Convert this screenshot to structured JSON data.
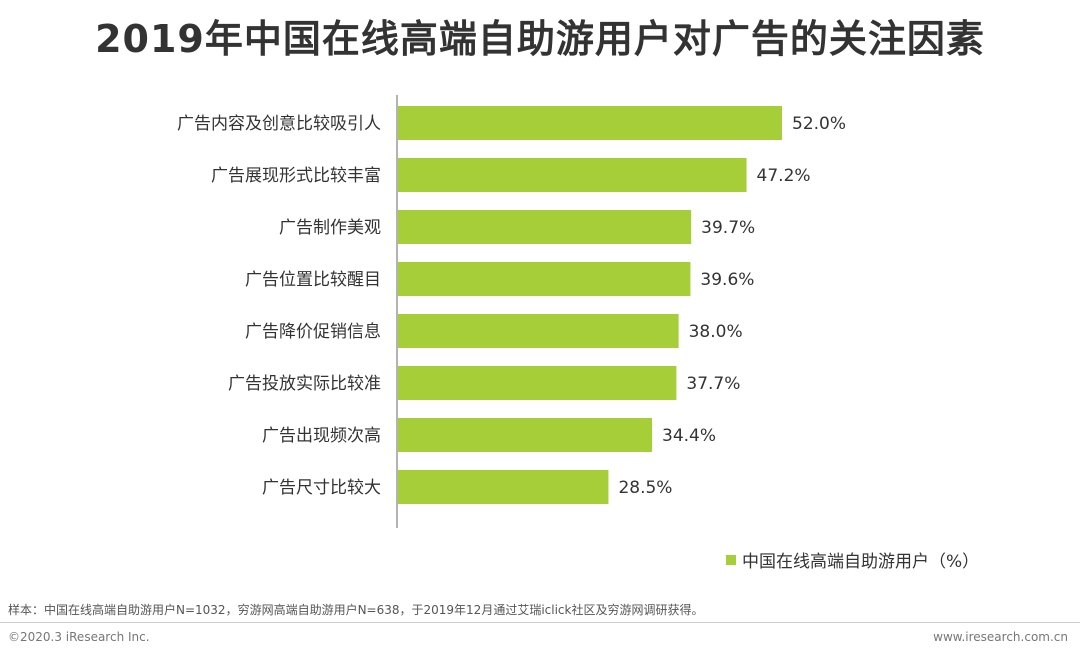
{
  "title": "2019年中国在线高端自助游用户对广告的关注因素",
  "chart_data": {
    "type": "bar",
    "orientation": "horizontal",
    "title": "2019年中国在线高端自助游用户对广告的关注因素",
    "categories": [
      "广告内容及创意比较吸引人",
      "广告展现形式比较丰富",
      "广告制作美观",
      "广告位置比较醒目",
      "广告降价促销信息",
      "广告投放实际比较准",
      "广告出现频次高",
      "广告尺寸比较大"
    ],
    "values": [
      52.0,
      47.2,
      39.7,
      39.6,
      38.0,
      37.7,
      34.4,
      28.5
    ],
    "value_labels": [
      "52.0%",
      "47.2%",
      "39.7%",
      "39.6%",
      "38.0%",
      "37.7%",
      "34.4%",
      "28.5%"
    ],
    "series": [
      {
        "name": "中国在线高端自助游用户（%）",
        "values": [
          52.0,
          47.2,
          39.7,
          39.6,
          38.0,
          37.7,
          34.4,
          28.5
        ]
      }
    ],
    "xlim": [
      0,
      52.0
    ],
    "color": "#a6ce39",
    "legend_position": "bottom-right"
  },
  "legend_label": "中国在线高端自助游用户（%）",
  "note": "样本：中国在线高端自助游用户N=1032，穷游网高端自助游用户N=638，于2019年12月通过艾瑞iclick社区及穷游网调研获得。",
  "copyright": "©2020.3 iResearch Inc.",
  "website": "www.iresearch.com.cn"
}
